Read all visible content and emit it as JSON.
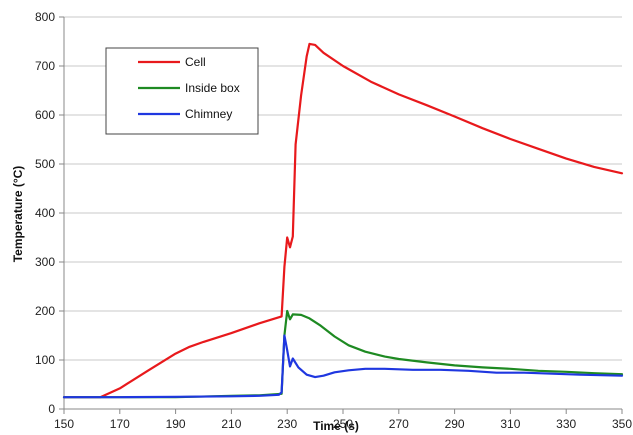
{
  "chart_data": {
    "type": "line",
    "xlabel": "Time (s)",
    "ylabel": "Temperature (°C)",
    "xlim": [
      150,
      350
    ],
    "ylim": [
      0,
      800
    ],
    "xticks": [
      150,
      170,
      190,
      210,
      230,
      250,
      270,
      290,
      310,
      330,
      350
    ],
    "yticks": [
      0,
      100,
      200,
      300,
      400,
      500,
      600,
      700,
      800
    ],
    "grid": "horizontal",
    "legend_position": "top-left",
    "series": [
      {
        "name": "Cell",
        "color": "#e8191c",
        "points": [
          [
            150,
            24
          ],
          [
            163,
            24
          ],
          [
            170,
            42
          ],
          [
            180,
            78
          ],
          [
            190,
            113
          ],
          [
            195,
            127
          ],
          [
            200,
            137
          ],
          [
            210,
            155
          ],
          [
            220,
            175
          ],
          [
            228,
            189
          ],
          [
            229,
            290
          ],
          [
            230,
            350
          ],
          [
            231,
            330
          ],
          [
            232,
            352
          ],
          [
            233,
            540
          ],
          [
            235,
            640
          ],
          [
            237,
            720
          ],
          [
            238,
            745
          ],
          [
            240,
            743
          ],
          [
            243,
            727
          ],
          [
            250,
            700
          ],
          [
            260,
            668
          ],
          [
            270,
            642
          ],
          [
            280,
            620
          ],
          [
            290,
            597
          ],
          [
            300,
            573
          ],
          [
            310,
            551
          ],
          [
            320,
            531
          ],
          [
            330,
            511
          ],
          [
            340,
            494
          ],
          [
            350,
            481
          ]
        ]
      },
      {
        "name": "Inside box",
        "color": "#1e8a22",
        "points": [
          [
            150,
            24
          ],
          [
            170,
            24
          ],
          [
            190,
            24
          ],
          [
            210,
            27
          ],
          [
            220,
            28
          ],
          [
            228,
            31
          ],
          [
            229,
            150
          ],
          [
            230,
            200
          ],
          [
            231,
            183
          ],
          [
            232,
            193
          ],
          [
            235,
            192
          ],
          [
            238,
            185
          ],
          [
            242,
            170
          ],
          [
            247,
            148
          ],
          [
            252,
            130
          ],
          [
            258,
            117
          ],
          [
            265,
            107
          ],
          [
            270,
            102
          ],
          [
            280,
            95
          ],
          [
            290,
            89
          ],
          [
            300,
            85
          ],
          [
            310,
            82
          ],
          [
            320,
            78
          ],
          [
            330,
            76
          ],
          [
            340,
            73
          ],
          [
            350,
            71
          ]
        ]
      },
      {
        "name": "Chimney",
        "color": "#1f37e0",
        "points": [
          [
            150,
            24
          ],
          [
            170,
            24
          ],
          [
            190,
            25
          ],
          [
            210,
            26
          ],
          [
            220,
            27
          ],
          [
            227,
            29
          ],
          [
            228,
            34
          ],
          [
            229,
            150
          ],
          [
            230,
            120
          ],
          [
            231,
            87
          ],
          [
            232,
            103
          ],
          [
            234,
            85
          ],
          [
            237,
            70
          ],
          [
            240,
            65
          ],
          [
            243,
            68
          ],
          [
            247,
            75
          ],
          [
            252,
            79
          ],
          [
            258,
            82
          ],
          [
            265,
            82
          ],
          [
            275,
            80
          ],
          [
            285,
            80
          ],
          [
            295,
            78
          ],
          [
            305,
            74
          ],
          [
            315,
            74
          ],
          [
            325,
            72
          ],
          [
            335,
            70
          ],
          [
            350,
            68
          ]
        ]
      }
    ]
  }
}
